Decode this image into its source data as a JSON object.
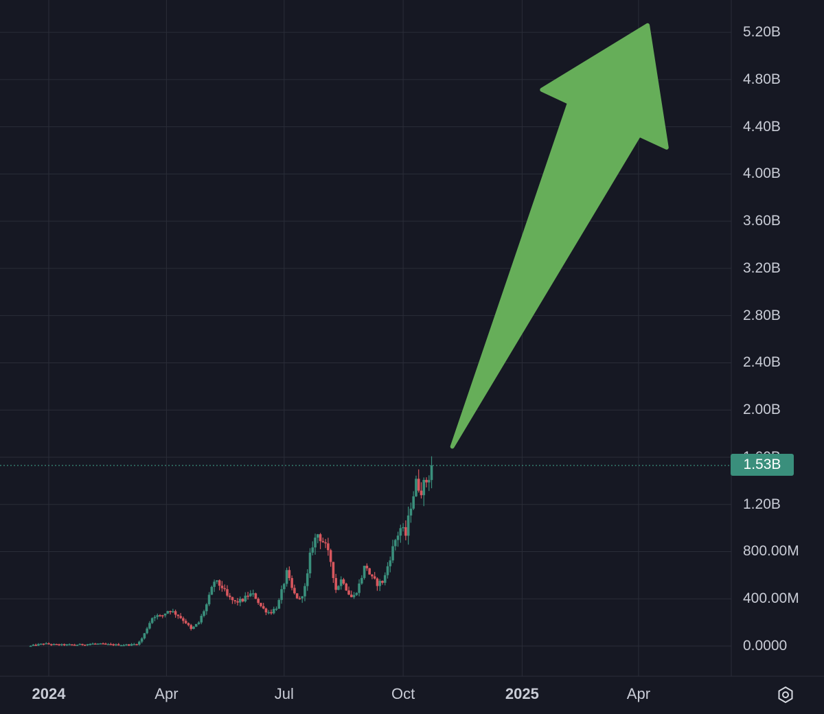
{
  "chart_data": {
    "type": "candlestick",
    "title": "",
    "xlabel": "",
    "ylabel": "",
    "ylim": [
      -0.1,
      5.35
    ],
    "y_unit": "B",
    "y_ticks": [
      0,
      0.4,
      0.8,
      1.2,
      1.6,
      2.0,
      2.4,
      2.8,
      3.2,
      3.6,
      4.0,
      4.4,
      4.8,
      5.2
    ],
    "y_tick_labels": [
      "0.0000",
      "400.00M",
      "800.00M",
      "1.20B",
      "1.60B",
      "2.00B",
      "2.40B",
      "2.80B",
      "3.20B",
      "3.60B",
      "4.00B",
      "4.40B",
      "4.80B",
      "5.20B"
    ],
    "x_tick_labels": [
      {
        "label": "2024",
        "date": "2024-01-01",
        "bold": true
      },
      {
        "label": "Apr",
        "date": "2024-04-01",
        "bold": false
      },
      {
        "label": "Jul",
        "date": "2024-07-01",
        "bold": false
      },
      {
        "label": "Oct",
        "date": "2024-10-01",
        "bold": false
      },
      {
        "label": "2025",
        "date": "2025-01-01",
        "bold": true
      },
      {
        "label": "Apr",
        "date": "2025-04-01",
        "bold": false
      }
    ],
    "grid": true,
    "last_price": 1.53,
    "last_price_label": "1.53B",
    "series_path": [
      [
        "2023-12-18",
        0.0
      ],
      [
        "2023-12-28",
        0.02
      ],
      [
        "2024-01-08",
        0.01
      ],
      [
        "2024-01-22",
        0.01
      ],
      [
        "2024-02-05",
        0.02
      ],
      [
        "2024-02-20",
        0.01
      ],
      [
        "2024-03-04",
        0.01
      ],
      [
        "2024-03-10",
        0.02
      ],
      [
        "2024-03-14",
        0.08
      ],
      [
        "2024-03-18",
        0.18
      ],
      [
        "2024-03-22",
        0.26
      ],
      [
        "2024-03-28",
        0.25
      ],
      [
        "2024-04-03",
        0.31
      ],
      [
        "2024-04-10",
        0.26
      ],
      [
        "2024-04-16",
        0.2
      ],
      [
        "2024-04-20",
        0.14
      ],
      [
        "2024-04-26",
        0.2
      ],
      [
        "2024-05-02",
        0.35
      ],
      [
        "2024-05-08",
        0.55
      ],
      [
        "2024-05-14",
        0.5
      ],
      [
        "2024-05-18",
        0.42
      ],
      [
        "2024-05-24",
        0.37
      ],
      [
        "2024-05-30",
        0.39
      ],
      [
        "2024-06-04",
        0.44
      ],
      [
        "2024-06-08",
        0.43
      ],
      [
        "2024-06-14",
        0.32
      ],
      [
        "2024-06-20",
        0.28
      ],
      [
        "2024-06-26",
        0.34
      ],
      [
        "2024-06-30",
        0.5
      ],
      [
        "2024-07-03",
        0.62
      ],
      [
        "2024-07-08",
        0.45
      ],
      [
        "2024-07-13",
        0.39
      ],
      [
        "2024-07-18",
        0.52
      ],
      [
        "2024-07-22",
        0.84
      ],
      [
        "2024-07-27",
        0.95
      ],
      [
        "2024-08-01",
        0.87
      ],
      [
        "2024-08-06",
        0.72
      ],
      [
        "2024-08-10",
        0.48
      ],
      [
        "2024-08-15",
        0.58
      ],
      [
        "2024-08-19",
        0.46
      ],
      [
        "2024-08-23",
        0.4
      ],
      [
        "2024-08-28",
        0.52
      ],
      [
        "2024-09-02",
        0.7
      ],
      [
        "2024-09-06",
        0.58
      ],
      [
        "2024-09-11",
        0.53
      ],
      [
        "2024-09-16",
        0.55
      ],
      [
        "2024-09-20",
        0.72
      ],
      [
        "2024-09-25",
        0.9
      ],
      [
        "2024-09-29",
        1.0
      ],
      [
        "2024-10-03",
        0.94
      ],
      [
        "2024-10-07",
        1.2
      ],
      [
        "2024-10-11",
        1.38
      ],
      [
        "2024-10-15",
        1.33
      ],
      [
        "2024-10-19",
        1.4
      ],
      [
        "2024-10-22",
        1.46
      ],
      [
        "2024-10-24",
        1.53
      ]
    ],
    "annotation": {
      "type": "arrow",
      "color": "#66ae59",
      "direction": "up-right",
      "from": [
        "2024-11-08",
        1.69
      ],
      "to": [
        "2025-04-08",
        5.26
      ]
    },
    "colors": {
      "up": "#3a8f7c",
      "down": "#d8575e",
      "background": "#161823",
      "grid": "#2a2d38",
      "axis_text": "#c9ccd6"
    }
  }
}
